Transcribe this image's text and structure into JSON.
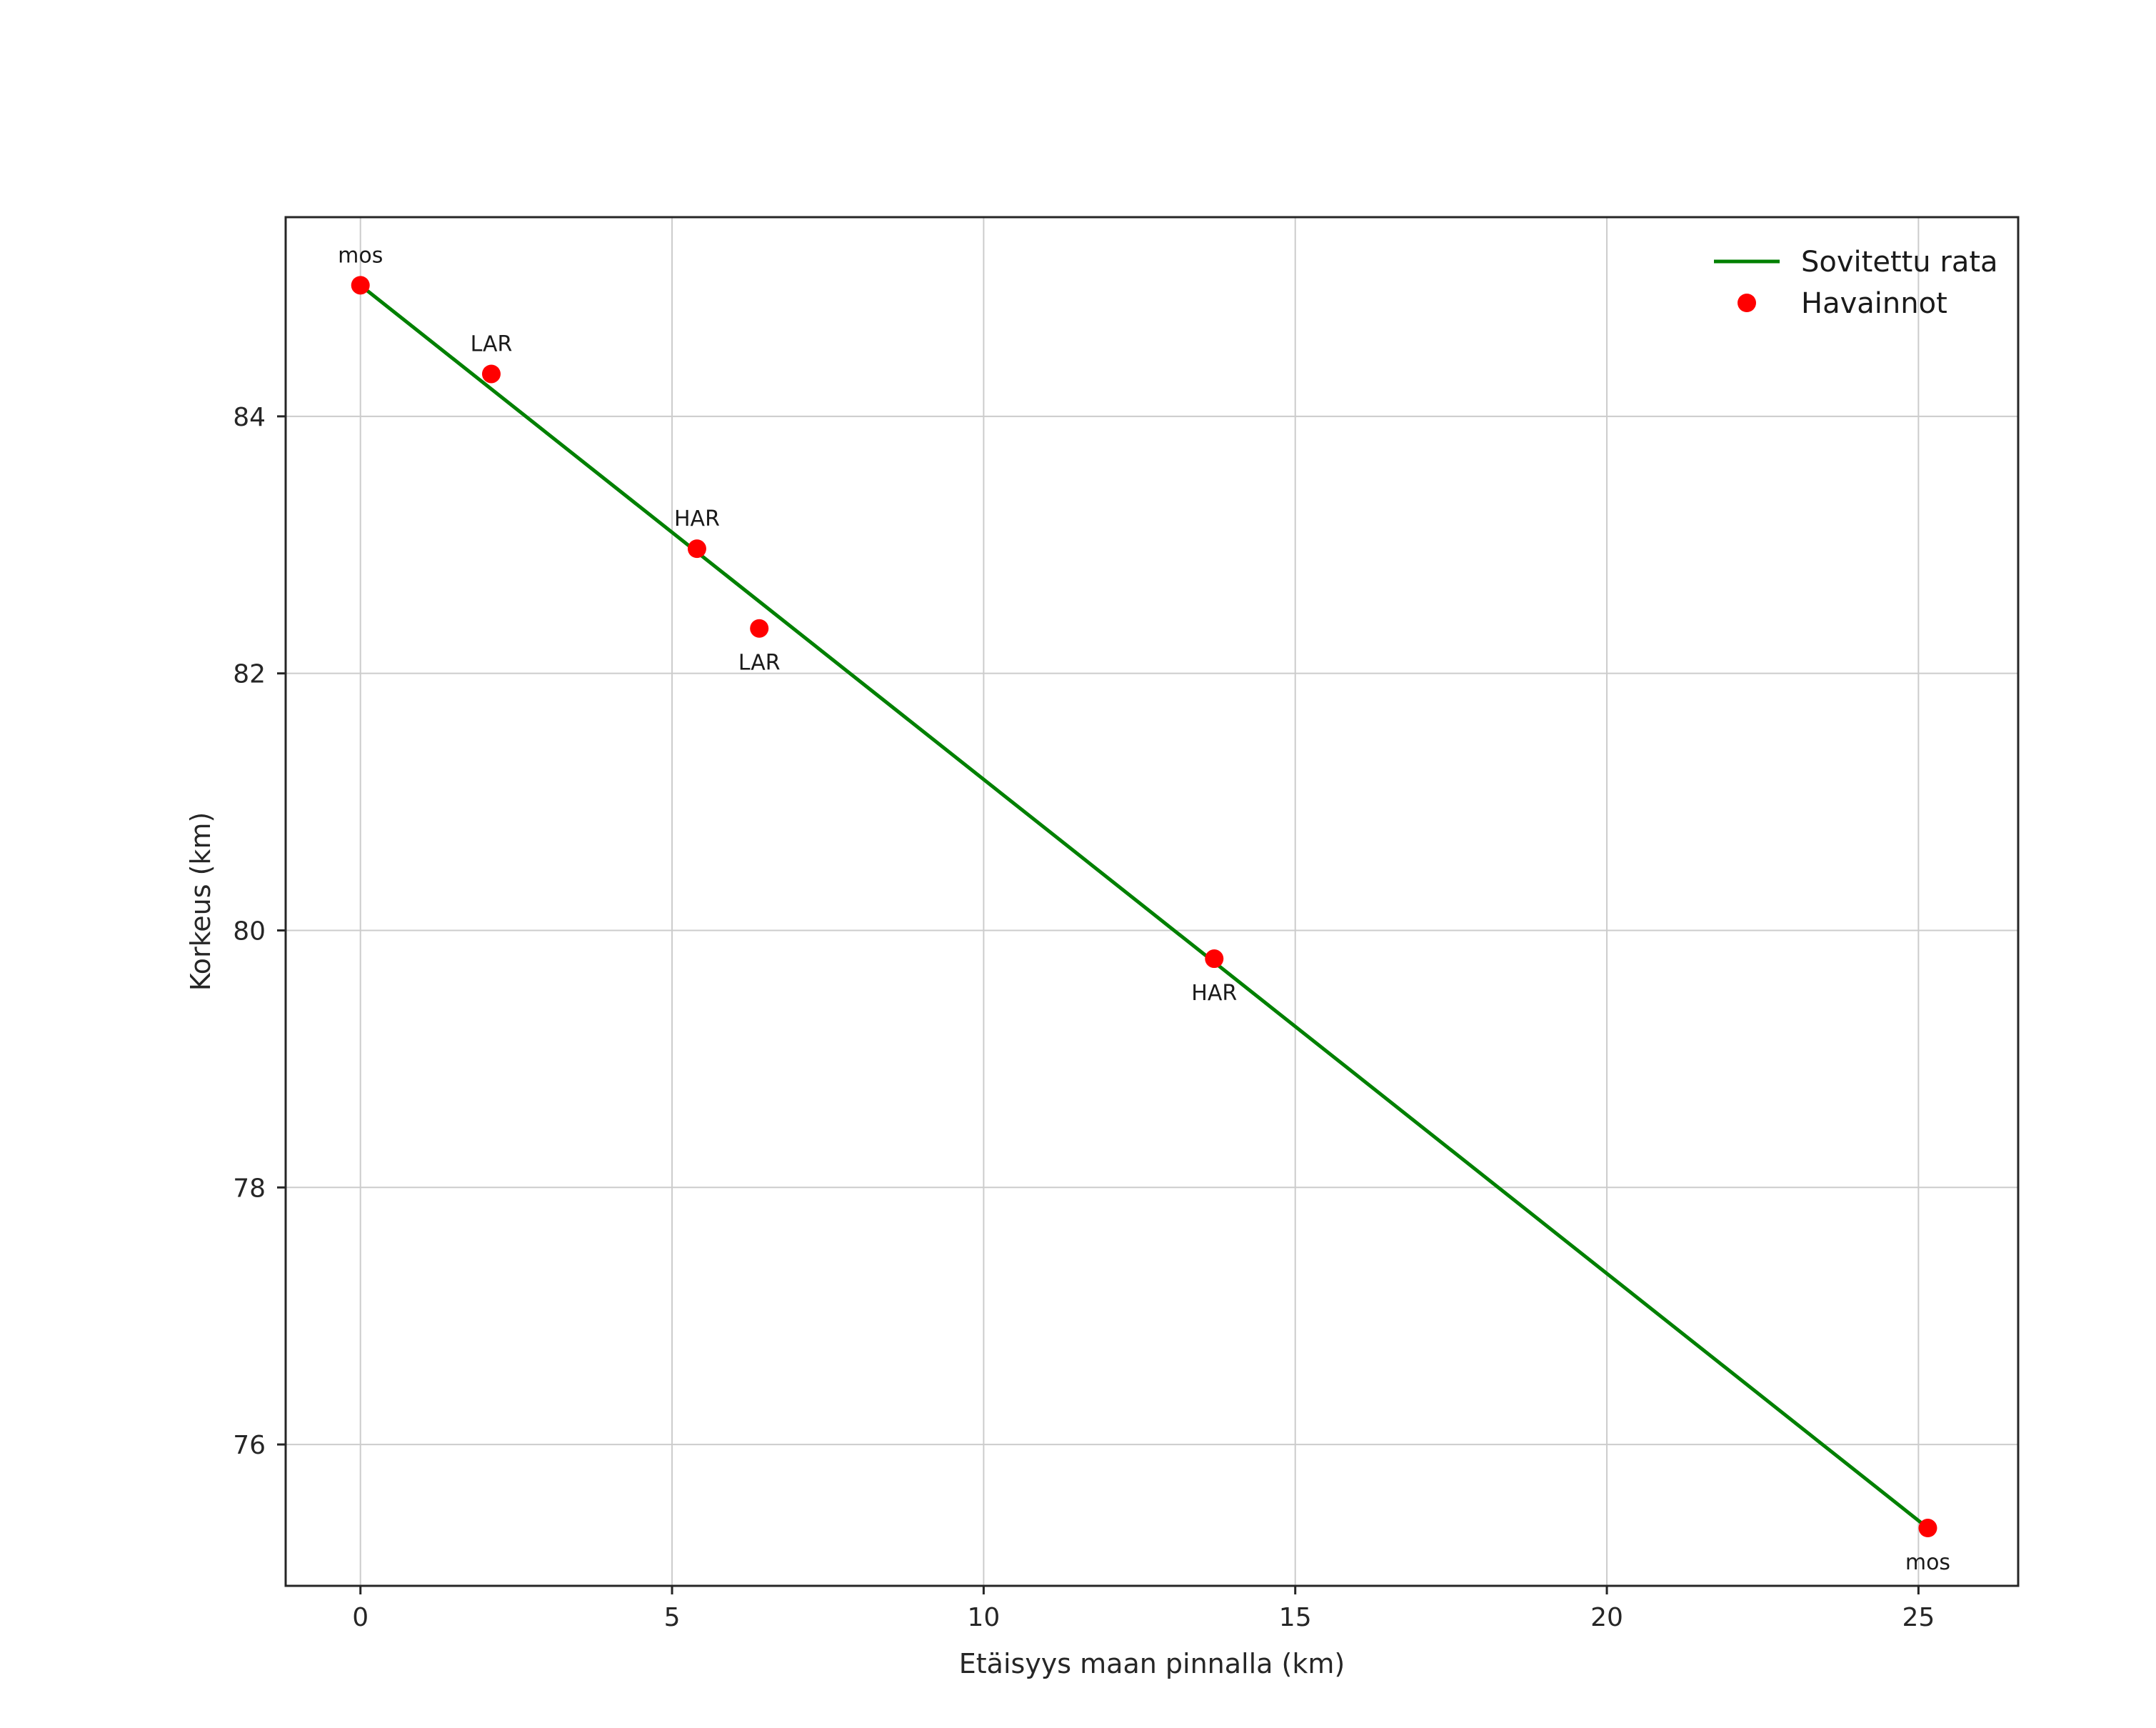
{
  "chart_data": {
    "type": "scatter",
    "title": "",
    "xlabel": "Etäisyys maan pinnalla (km)",
    "ylabel": "Korkeus (km)",
    "xlim": [
      -1.2,
      26.6
    ],
    "ylim": [
      74.9,
      85.55
    ],
    "xticks": [
      0,
      5,
      10,
      15,
      20,
      25
    ],
    "yticks": [
      76,
      78,
      80,
      82,
      84
    ],
    "grid": true,
    "grid_color": "#cccccc",
    "frame_color": "#262626",
    "background": "#ffffff",
    "legend": {
      "position": "upper right",
      "entries": [
        {
          "label": "Sovitettu rata",
          "type": "line",
          "color": "#008000"
        },
        {
          "label": "Havainnot",
          "type": "marker",
          "color": "#ff0000"
        }
      ]
    },
    "series": [
      {
        "name": "Sovitettu rata",
        "type": "line",
        "color": "#008000",
        "x": [
          0.0,
          25.15
        ],
        "y": [
          85.02,
          75.35
        ]
      },
      {
        "name": "Havainnot",
        "type": "scatter",
        "color": "#ff0000",
        "points": [
          {
            "x": 0.0,
            "y": 85.02,
            "label": "mos",
            "label_pos": "above"
          },
          {
            "x": 2.1,
            "y": 84.33,
            "label": "LAR",
            "label_pos": "above"
          },
          {
            "x": 5.4,
            "y": 82.97,
            "label": "HAR",
            "label_pos": "above"
          },
          {
            "x": 6.4,
            "y": 82.35,
            "label": "LAR",
            "label_pos": "below"
          },
          {
            "x": 13.7,
            "y": 79.78,
            "label": "HAR",
            "label_pos": "below"
          },
          {
            "x": 25.15,
            "y": 75.35,
            "label": "mos",
            "label_pos": "below"
          }
        ]
      }
    ]
  }
}
